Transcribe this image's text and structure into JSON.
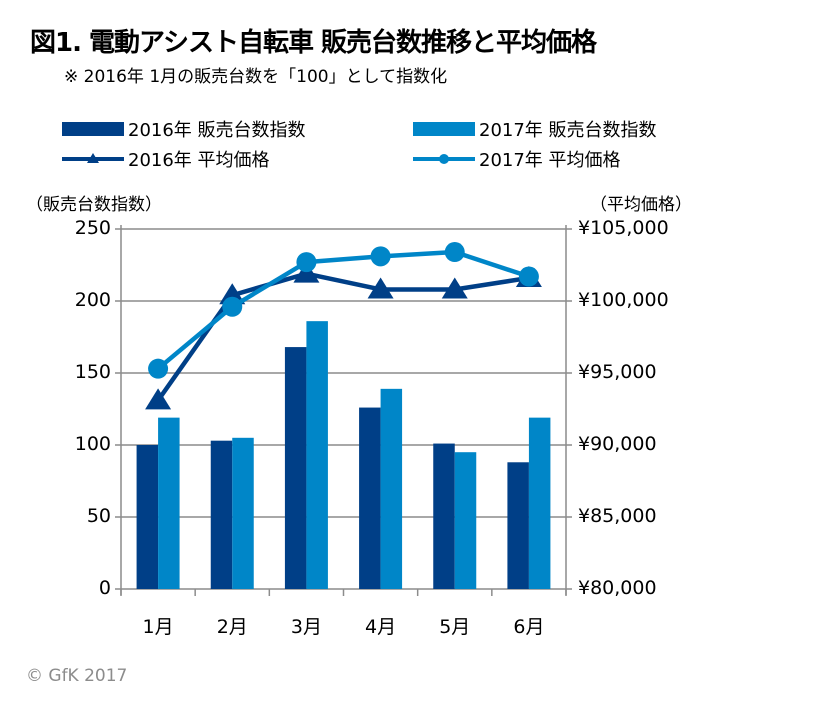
{
  "chart_data": {
    "type": "bar+line",
    "title": "図1. 電動アシスト自転車 販売台数推移と平均価格",
    "subtitle": "※ 2016年 1月の販売台数を「100」として指数化",
    "categories": [
      "1月",
      "2月",
      "3月",
      "4月",
      "5月",
      "6月"
    ],
    "ylabel_left": "（販売台数指数）",
    "ylabel_right": "（平均価格）",
    "ylim_left": [
      0,
      250
    ],
    "yticks_left": [
      "0",
      "50",
      "100",
      "150",
      "200",
      "250"
    ],
    "ylim_right": [
      80000,
      105000
    ],
    "yticks_right": [
      "¥80,000",
      "¥85,000",
      "¥90,000",
      "¥95,000",
      "¥100,000",
      "¥105,000"
    ],
    "grid": true,
    "legend_position": "top",
    "series": [
      {
        "name": "2016年 販売台数指数",
        "kind": "bar",
        "axis": "left",
        "color": "#003f87",
        "values": [
          100,
          103,
          168,
          126,
          101,
          88
        ]
      },
      {
        "name": "2017年 販売台数指数",
        "kind": "bar",
        "axis": "left",
        "color": "#0086c8",
        "values": [
          119,
          105,
          186,
          139,
          95,
          119
        ]
      },
      {
        "name": "2016年 平均価格",
        "kind": "line",
        "marker": "triangle",
        "axis": "right",
        "color": "#003f87",
        "values": [
          93100,
          100400,
          101900,
          100800,
          100800,
          101600
        ]
      },
      {
        "name": "2017年 平均価格",
        "kind": "line",
        "marker": "circle",
        "axis": "right",
        "color": "#0086c8",
        "values": [
          95300,
          99600,
          102700,
          103100,
          103400,
          101700
        ]
      }
    ]
  },
  "copyright": "© GfK 2017"
}
